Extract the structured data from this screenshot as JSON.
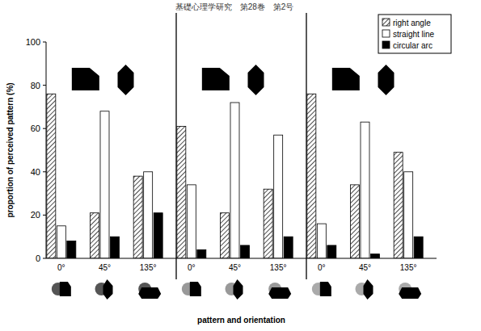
{
  "chart_data": {
    "type": "bar",
    "title": "基礎心理学研究　第28巻　第2号",
    "x_label": "pattern and orientation",
    "y_label": "proportion of perceived pattern (%)",
    "categories": [
      "0°",
      "45°",
      "135°",
      "0°",
      "45°",
      "135°",
      "0°",
      "45°",
      "135°"
    ],
    "series": [
      {
        "name": "right angle",
        "color": "#000000",
        "line_style": "hatched",
        "values": [
          76,
          21,
          38,
          61,
          21,
          32,
          76,
          34,
          49
        ]
      },
      {
        "name": "straight line",
        "color": "#ffffff",
        "line_style": "solid",
        "values": [
          15,
          68,
          40,
          34,
          72,
          57,
          16,
          63,
          40
        ]
      },
      {
        "name": "circular arc",
        "color": "#000000",
        "line_style": "solid",
        "values": [
          8,
          10,
          21,
          4,
          6,
          10,
          6,
          2,
          10
        ]
      }
    ],
    "ylim": [
      0,
      100
    ],
    "yticks": [
      0,
      20,
      40,
      60,
      80,
      100
    ],
    "grid": false,
    "legend": "top-right"
  }
}
